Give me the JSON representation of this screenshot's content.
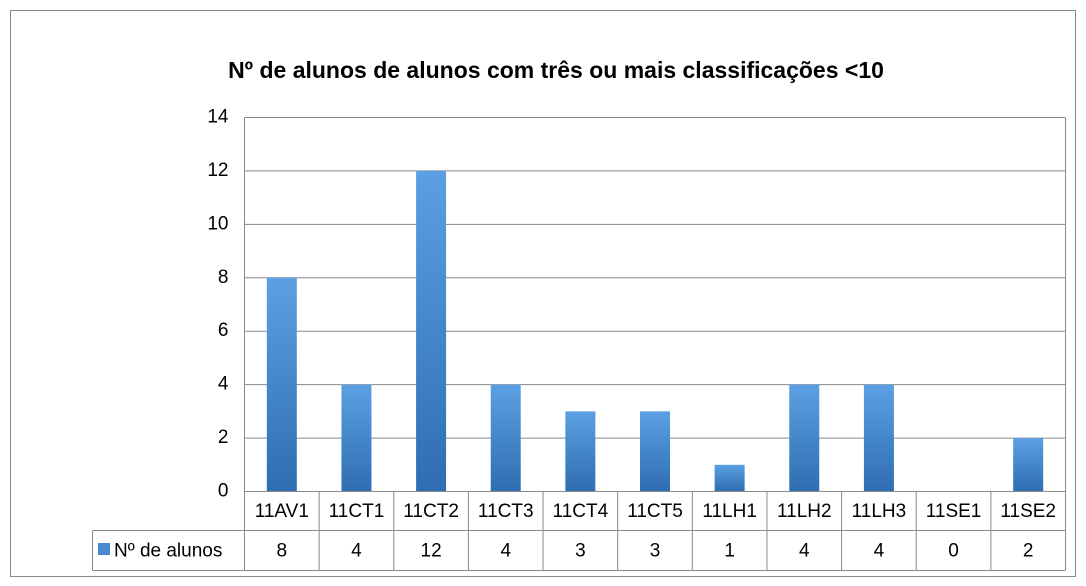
{
  "chart_data": {
    "type": "bar",
    "title": "Nº de alunos de alunos com três ou mais classificações <10",
    "categories": [
      "11AV1",
      "11CT1",
      "11CT2",
      "11CT3",
      "11CT4",
      "11CT5",
      "11LH1",
      "11LH2",
      "11LH3",
      "11SE1",
      "11SE2"
    ],
    "series": [
      {
        "name": "Nº de alunos",
        "color": "#4a89cf",
        "values": [
          8,
          4,
          12,
          4,
          3,
          3,
          1,
          4,
          4,
          0,
          2
        ]
      }
    ],
    "ylim": [
      0,
      14
    ],
    "yticks": [
      0,
      2,
      4,
      6,
      8,
      10,
      12,
      14
    ],
    "grid": true,
    "data_table": true
  }
}
